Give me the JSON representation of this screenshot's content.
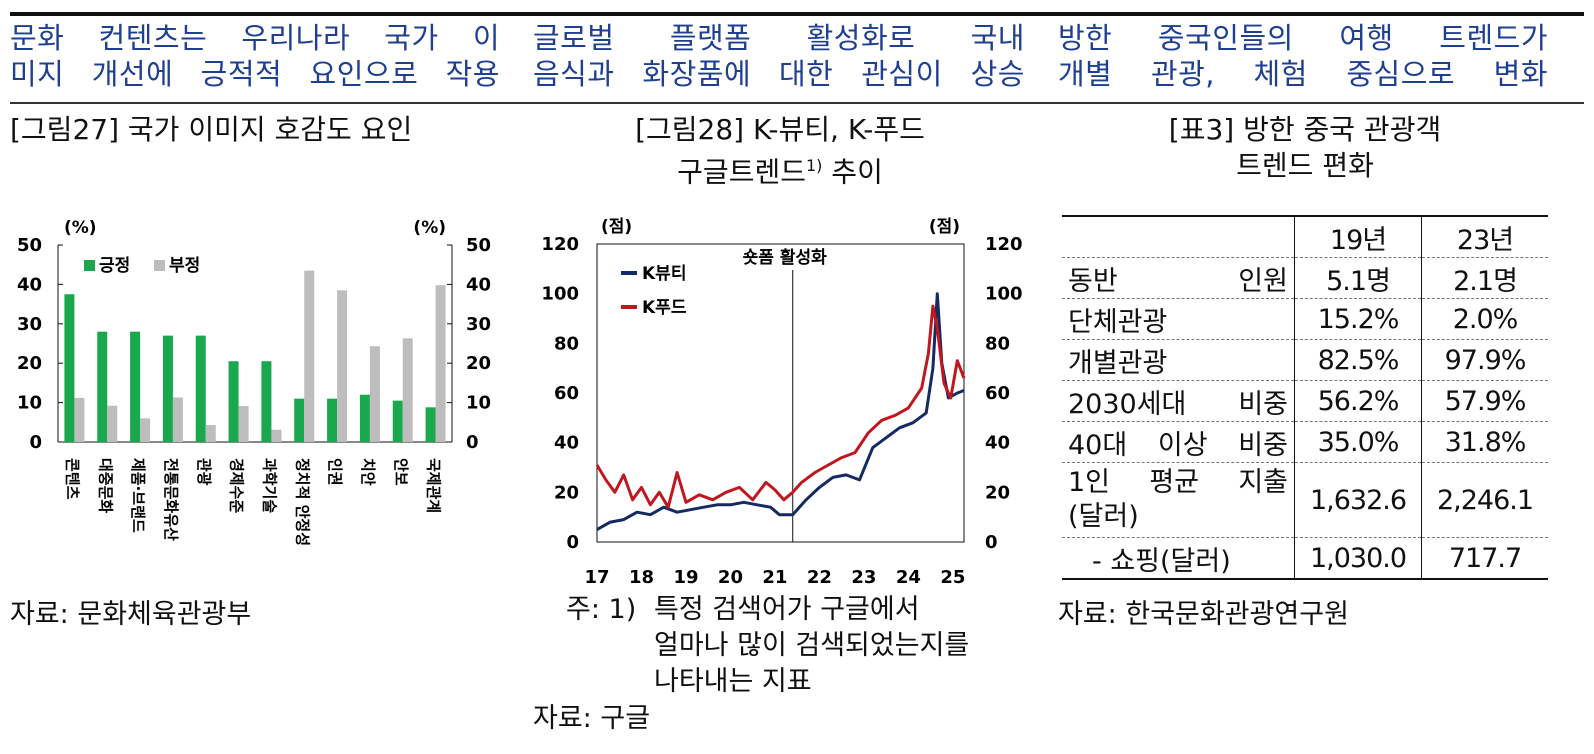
{
  "headlines": [
    {
      "line1": "문화 컨텐츠는 우리나라 국가 이",
      "line2": "미지 개선에 긍적적 요인으로 작용"
    },
    {
      "line1": "글로벌 플랫폼 활성화로 국내",
      "line2": "음식과 화장품에 대한 관심이 상승"
    },
    {
      "line1": "방한 중국인들의 여행 트렌드가",
      "line2": "개별 관광, 체험 중심으로 변화"
    }
  ],
  "fig27": {
    "title": "[그림27] 국가 이미지 호감도 요인",
    "source": "자료: 문화체육관광부"
  },
  "fig28": {
    "title_line1": "[그림28] K-뷰티, K-푸드",
    "title_line2": "구글트렌드",
    "title_sup": "1)",
    "title_line2_end": " 추이",
    "note_prefix": "주: 1)",
    "note_line1": "특정 검색어가 구글에서",
    "note_line2": "얼마나 많이 검색되었는지를",
    "note_line3": "나타내는 지표",
    "source": "자료: 구글"
  },
  "table3": {
    "title_line1": "[표3] 방한 중국 관광객",
    "title_line2": "트렌드 편화",
    "columns": [
      "",
      "19년",
      "23년"
    ],
    "rows": [
      {
        "label": "동반 인원",
        "v19": "5.1명",
        "v23": "2.1명"
      },
      {
        "label": "단체관광",
        "v19": "15.2%",
        "v23": "2.0%"
      },
      {
        "label": "개별관광",
        "v19": "82.5%",
        "v23": "97.9%"
      },
      {
        "label": "2030세대 비중",
        "v19": "56.2%",
        "v23": "57.9%"
      },
      {
        "label": "40대 이상 비중",
        "v19": "35.0%",
        "v23": "31.8%"
      },
      {
        "label_line1": "1인 평균 지출",
        "label_line2": "(달러)",
        "v19": "1,632.6",
        "v23": "2,246.1"
      },
      {
        "label": "- 쇼핑(달러)",
        "v19": "1,030.0",
        "v23": "717.7"
      }
    ],
    "source": "자료: 한국문화관광연구원"
  },
  "chart_data": [
    {
      "type": "bar",
      "unit_left": "(%)",
      "unit_right": "(%)",
      "categories": [
        "콘텐츠",
        "대중문화",
        "제품·브랜드",
        "전통문화유산",
        "관광",
        "경제수준",
        "과학기술",
        "정치적 안정성",
        "인권",
        "치안",
        "안보",
        "국제관계"
      ],
      "series": [
        {
          "name": "긍정",
          "color": "#1aa84f",
          "values": [
            37.5,
            28,
            28,
            27,
            27,
            20.5,
            20.5,
            11,
            11,
            12,
            10.5,
            8.8
          ]
        },
        {
          "name": "부정",
          "color": "#bdbdbd",
          "values": [
            11.2,
            9.2,
            6,
            11.3,
            4.3,
            9.1,
            3.1,
            43.5,
            38.5,
            24.3,
            26.3,
            39.8
          ]
        }
      ],
      "ylim": [
        0,
        50
      ],
      "yticks": [
        0,
        10,
        20,
        30,
        40,
        50
      ],
      "legend": "top-left",
      "grid": false
    },
    {
      "type": "line",
      "unit_left": "(점)",
      "unit_right": "(점)",
      "annotation": "숏폼 활성화",
      "annotation_x": 21.4,
      "xticks": [
        "17",
        "18",
        "19",
        "20",
        "21",
        "22",
        "23",
        "24",
        "25"
      ],
      "xlim": [
        17,
        25.25
      ],
      "ylim": [
        0,
        120
      ],
      "yticks": [
        0,
        20,
        40,
        60,
        80,
        100,
        120
      ],
      "legend": "top-left",
      "grid": false,
      "series": [
        {
          "name": "K뷰티",
          "color": "#152a63",
          "points": [
            [
              17,
              5
            ],
            [
              17.3,
              8
            ],
            [
              17.6,
              9
            ],
            [
              17.9,
              12
            ],
            [
              18.2,
              11
            ],
            [
              18.5,
              14
            ],
            [
              18.8,
              12
            ],
            [
              19.1,
              13
            ],
            [
              19.4,
              14
            ],
            [
              19.7,
              15
            ],
            [
              20,
              15
            ],
            [
              20.3,
              16
            ],
            [
              20.6,
              15
            ],
            [
              20.9,
              14
            ],
            [
              21.1,
              11
            ],
            [
              21.4,
              11
            ],
            [
              21.7,
              17
            ],
            [
              22,
              22
            ],
            [
              22.3,
              26
            ],
            [
              22.6,
              27
            ],
            [
              22.9,
              25
            ],
            [
              23.2,
              38
            ],
            [
              23.5,
              42
            ],
            [
              23.8,
              46
            ],
            [
              24.1,
              48
            ],
            [
              24.4,
              52
            ],
            [
              24.55,
              70
            ],
            [
              24.65,
              100
            ],
            [
              24.75,
              72
            ],
            [
              24.9,
              58
            ],
            [
              25.1,
              60
            ],
            [
              25.25,
              61
            ]
          ]
        },
        {
          "name": "K푸드",
          "color": "#c0171f",
          "points": [
            [
              17,
              31
            ],
            [
              17.2,
              25
            ],
            [
              17.4,
              20
            ],
            [
              17.6,
              27
            ],
            [
              17.8,
              17
            ],
            [
              18,
              22
            ],
            [
              18.2,
              15
            ],
            [
              18.4,
              20
            ],
            [
              18.6,
              14
            ],
            [
              18.8,
              28
            ],
            [
              19,
              16
            ],
            [
              19.3,
              19
            ],
            [
              19.6,
              17
            ],
            [
              19.9,
              20
            ],
            [
              20.2,
              22
            ],
            [
              20.5,
              17
            ],
            [
              20.8,
              24
            ],
            [
              21,
              21
            ],
            [
              21.2,
              17
            ],
            [
              21.4,
              20
            ],
            [
              21.6,
              24
            ],
            [
              21.9,
              28
            ],
            [
              22.2,
              31
            ],
            [
              22.5,
              34
            ],
            [
              22.8,
              36
            ],
            [
              23.1,
              44
            ],
            [
              23.4,
              49
            ],
            [
              23.7,
              51
            ],
            [
              24,
              54
            ],
            [
              24.3,
              62
            ],
            [
              24.45,
              76
            ],
            [
              24.55,
              95
            ],
            [
              24.65,
              86
            ],
            [
              24.8,
              64
            ],
            [
              24.95,
              58
            ],
            [
              25.1,
              73
            ],
            [
              25.25,
              66
            ]
          ]
        }
      ]
    }
  ]
}
